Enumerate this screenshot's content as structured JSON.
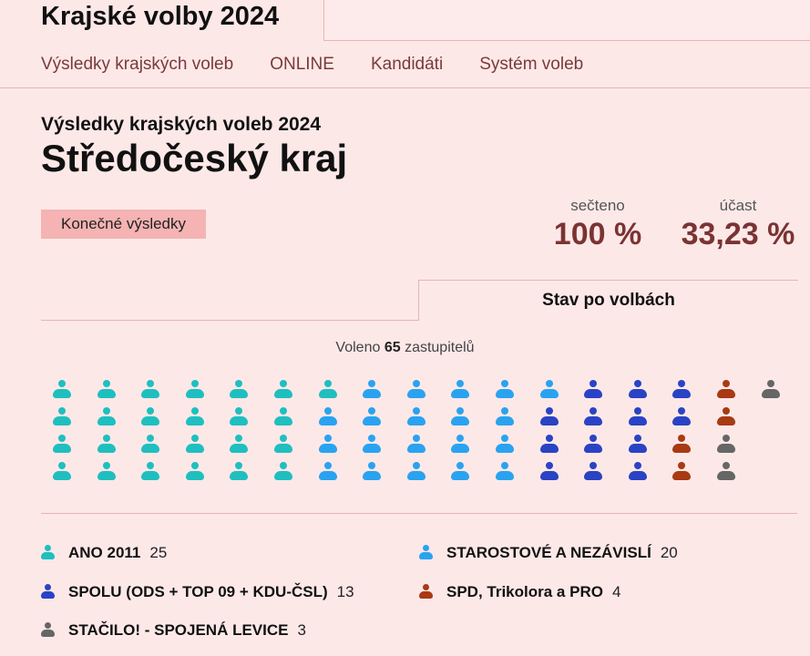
{
  "header": {
    "site_title": "Krajské volby 2024"
  },
  "nav": {
    "items": [
      "Výsledky krajských voleb",
      "ONLINE",
      "Kandidáti",
      "Systém voleb"
    ]
  },
  "results": {
    "subtitle": "Výsledky krajských voleb 2024",
    "region": "Středočeský kraj",
    "status_badge": "Konečné výsledky",
    "counted_label": "sečteno",
    "counted_value": "100 %",
    "turnout_label": "účast",
    "turnout_value": "33,23 %"
  },
  "tabs": {
    "active_label": "Stav po volbách"
  },
  "seats": {
    "elected_prefix": "Voleno",
    "elected_count": "65",
    "elected_suffix": "zastupitelů",
    "total": 65
  },
  "parties": [
    {
      "name": "ANO 2011",
      "seats": "25",
      "color": "#1fbfbf"
    },
    {
      "name": "STAROSTOVÉ A NEZÁVISLÍ",
      "seats": "20",
      "color": "#29a3f0"
    },
    {
      "name": "SPOLU (ODS + TOP 09 + KDU-ČSL)",
      "seats": "13",
      "color": "#2a43c4"
    },
    {
      "name": "SPD, Trikolora a PRO",
      "seats": "4",
      "color": "#a83a14"
    },
    {
      "name": "STAČILO! - SPOJENÁ LEVICE",
      "seats": "3",
      "color": "#666666"
    }
  ],
  "colors": {
    "background": "#fde8e8",
    "accent": "#7a3333",
    "badge": "#f5b3b3"
  }
}
